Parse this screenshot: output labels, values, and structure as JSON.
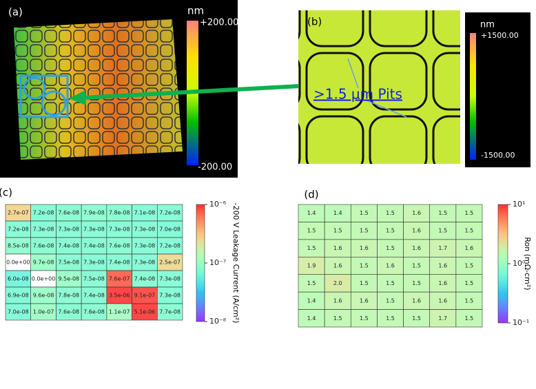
{
  "panels": {
    "a": {
      "label": "(a)",
      "unit": "nm",
      "max_label": "+200.00",
      "min_label": "-200.00"
    },
    "b": {
      "label": "(b)",
      "unit": "nm",
      "max_label": "+1500.00",
      "min_label": "-1500.00",
      "annotation": ">1.5 µm Pits"
    }
  },
  "chart_data": [
    {
      "type": "heatmap",
      "panel_label": "(c)",
      "colorbar_label": "-200 V Leakage Current (A/cm²)",
      "colormap": "rainbow",
      "log_scale": true,
      "zlim": [
        1e-08,
        1e-06
      ],
      "zticks": [
        {
          "value": 1e-08,
          "label": "10⁻⁸"
        },
        {
          "value": 1e-07,
          "label": "10⁻⁷"
        },
        {
          "value": 1e-06,
          "label": "10⁻⁶"
        }
      ],
      "values": [
        [
          2.7e-07,
          7.2e-08,
          7.6e-08,
          7.9e-08,
          7.8e-08,
          7.1e-08,
          7.2e-08
        ],
        [
          7.2e-08,
          7.3e-08,
          7.3e-08,
          7.3e-08,
          7.3e-08,
          7.3e-08,
          7e-08
        ],
        [
          8.5e-08,
          7.6e-08,
          7.4e-08,
          7.4e-08,
          7.6e-08,
          7.3e-08,
          7.2e-08
        ],
        [
          0,
          9.7e-08,
          7.5e-08,
          7.3e-08,
          7.4e-08,
          7.3e-08,
          2.5e-07
        ],
        [
          6e-08,
          0,
          9.5e-08,
          7.5e-08,
          7.6e-07,
          7.4e-08,
          7.3e-08
        ],
        [
          6.9e-08,
          9.6e-08,
          7.8e-08,
          7.4e-08,
          3.5e-06,
          9.1e-07,
          7.3e-08
        ],
        [
          7e-08,
          1e-07,
          7.6e-08,
          7.6e-08,
          1.1e-07,
          5.1e-06,
          7.7e-08
        ]
      ],
      "value_labels": [
        [
          "2.7e-07",
          "7.2e-08",
          "7.6e-08",
          "7.9e-08",
          "7.8e-08",
          "7.1e-08",
          "7.2e-08"
        ],
        [
          "7.2e-08",
          "7.3e-08",
          "7.3e-08",
          "7.3e-08",
          "7.3e-08",
          "7.3e-08",
          "7.0e-08"
        ],
        [
          "8.5e-08",
          "7.6e-08",
          "7.4e-08",
          "7.4e-08",
          "7.6e-08",
          "7.3e-08",
          "7.2e-08"
        ],
        [
          "0.0e+00",
          "9.7e-08",
          "7.5e-08",
          "7.3e-08",
          "7.4e-08",
          "7.3e-08",
          "2.5e-07"
        ],
        [
          "6.0e-08",
          "0.0e+00",
          "9.5e-08",
          "7.5e-08",
          "7.6e-07",
          "7.4e-08",
          "7.3e-08"
        ],
        [
          "6.9e-08",
          "9.6e-08",
          "7.8e-08",
          "7.4e-08",
          "3.5e-06",
          "9.1e-07",
          "7.3e-08"
        ],
        [
          "7.0e-08",
          "1.0e-07",
          "7.6e-08",
          "7.6e-08",
          "1.1e-07",
          "5.1e-06",
          "7.7e-08"
        ]
      ]
    },
    {
      "type": "heatmap",
      "panel_label": "(d)",
      "colorbar_label": "Ron (mΩ-cm²)",
      "colormap": "rainbow",
      "log_scale": true,
      "zlim": [
        0.1,
        10
      ],
      "zticks": [
        {
          "value": 0.1,
          "label": "10⁻¹"
        },
        {
          "value": 1,
          "label": "10⁰"
        },
        {
          "value": 10,
          "label": "10¹"
        }
      ],
      "values": [
        [
          1.4,
          1.4,
          1.5,
          1.5,
          1.6,
          1.5,
          1.5
        ],
        [
          1.5,
          1.5,
          1.5,
          1.5,
          1.6,
          1.5,
          1.5
        ],
        [
          1.5,
          1.6,
          1.6,
          1.5,
          1.6,
          1.7,
          1.6
        ],
        [
          1.9,
          1.6,
          1.5,
          1.6,
          1.5,
          1.6,
          1.5
        ],
        [
          1.5,
          2.0,
          1.5,
          1.5,
          1.5,
          1.6,
          1.5
        ],
        [
          1.4,
          1.6,
          1.6,
          1.5,
          1.6,
          1.6,
          1.5
        ],
        [
          1.4,
          1.5,
          1.5,
          1.5,
          1.5,
          1.7,
          1.5
        ]
      ],
      "value_labels": [
        [
          "1.4",
          "1.4",
          "1.5",
          "1.5",
          "1.6",
          "1.5",
          "1.5"
        ],
        [
          "1.5",
          "1.5",
          "1.5",
          "1.5",
          "1.6",
          "1.5",
          "1.5"
        ],
        [
          "1.5",
          "1.6",
          "1.6",
          "1.5",
          "1.6",
          "1.7",
          "1.6"
        ],
        [
          "1.9",
          "1.6",
          "1.5",
          "1.6",
          "1.5",
          "1.6",
          "1.5"
        ],
        [
          "1.5",
          "2.0",
          "1.5",
          "1.5",
          "1.5",
          "1.6",
          "1.5"
        ],
        [
          "1.4",
          "1.6",
          "1.6",
          "1.5",
          "1.6",
          "1.6",
          "1.5"
        ],
        [
          "1.4",
          "1.5",
          "1.5",
          "1.5",
          "1.5",
          "1.7",
          "1.5"
        ]
      ]
    }
  ]
}
